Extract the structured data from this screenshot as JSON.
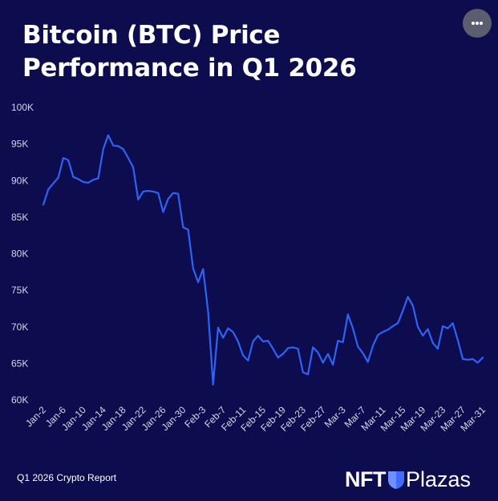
{
  "title": "Bitcoin (BTC) Price Performance in Q1 2026",
  "menu_icon": "more-horizontal-icon",
  "footer_note": "Q1 2026 Crypto Report",
  "logo": {
    "left": "NFT",
    "right": "Plazas",
    "mark_icon": "shield-icon"
  },
  "colors": {
    "background": "#0c0c4e",
    "line": "#2f63f6",
    "text": "#ffffff",
    "tick_text": "#d6d7e6"
  },
  "chart_data": {
    "type": "line",
    "title": "Bitcoin (BTC) Price Performance in Q1 2026",
    "xlabel": "",
    "ylabel": "",
    "ylim": [
      60000,
      100000
    ],
    "y_ticks": [
      "60K",
      "65K",
      "70K",
      "75K",
      "80K",
      "85K",
      "90K",
      "95K",
      "100K"
    ],
    "x_ticks": [
      "Jan-2",
      "Jan-6",
      "Jan-10",
      "Jan-14",
      "Jan-18",
      "Jan-22",
      "Jan-26",
      "Jan-30",
      "Feb-3",
      "Feb-7",
      "Feb-11",
      "Feb-15",
      "Feb-19",
      "Feb-23",
      "Feb-27",
      "Mar-3",
      "Mar-7",
      "Mar-11",
      "Mar-15",
      "Mar-19",
      "Mar-23",
      "Mar-27",
      "Mar-31"
    ],
    "grid": false,
    "legend": "none",
    "series": [
      {
        "x": [
          "2026-01-02",
          "2026-01-03",
          "2026-01-04",
          "2026-01-05",
          "2026-01-06",
          "2026-01-07",
          "2026-01-08",
          "2026-01-09",
          "2026-01-10",
          "2026-01-11",
          "2026-01-12",
          "2026-01-13",
          "2026-01-14",
          "2026-01-15",
          "2026-01-16",
          "2026-01-17",
          "2026-01-18",
          "2026-01-19",
          "2026-01-20",
          "2026-01-21",
          "2026-01-22",
          "2026-01-23",
          "2026-01-24",
          "2026-01-25",
          "2026-01-26",
          "2026-01-27",
          "2026-01-28",
          "2026-01-29",
          "2026-01-30",
          "2026-01-31",
          "2026-02-01",
          "2026-02-02",
          "2026-02-03",
          "2026-02-04",
          "2026-02-05",
          "2026-02-06",
          "2026-02-07",
          "2026-02-08",
          "2026-02-09",
          "2026-02-10",
          "2026-02-11",
          "2026-02-12",
          "2026-02-13",
          "2026-02-14",
          "2026-02-15",
          "2026-02-16",
          "2026-02-17",
          "2026-02-18",
          "2026-02-19",
          "2026-02-20",
          "2026-02-21",
          "2026-02-22",
          "2026-02-23",
          "2026-02-24",
          "2026-02-25",
          "2026-02-26",
          "2026-02-27",
          "2026-02-28",
          "2026-03-01",
          "2026-03-02",
          "2026-03-03",
          "2026-03-04",
          "2026-03-05",
          "2026-03-06",
          "2026-03-07",
          "2026-03-08",
          "2026-03-09",
          "2026-03-10",
          "2026-03-11",
          "2026-03-12",
          "2026-03-13",
          "2026-03-14",
          "2026-03-15",
          "2026-03-16",
          "2026-03-17",
          "2026-03-18",
          "2026-03-19",
          "2026-03-20",
          "2026-03-21",
          "2026-03-22",
          "2026-03-23",
          "2026-03-24",
          "2026-03-25",
          "2026-03-26",
          "2026-03-27",
          "2026-03-28",
          "2026-03-29",
          "2026-03-30",
          "2026-03-31"
        ],
        "y": [
          86700,
          88800,
          89600,
          90400,
          93100,
          92800,
          90500,
          90200,
          89800,
          89700,
          90100,
          90300,
          94300,
          96200,
          94800,
          94700,
          94300,
          93100,
          91800,
          87400,
          88500,
          88600,
          88500,
          88300,
          85700,
          87500,
          88300,
          88200,
          83600,
          83300,
          78000,
          76100,
          77900,
          72100,
          62100,
          69900,
          68500,
          69800,
          69300,
          68000,
          66100,
          65400,
          68000,
          68800,
          68000,
          68100,
          67000,
          65800,
          66300,
          67100,
          67200,
          67000,
          63800,
          63500,
          67200,
          66500,
          65100,
          66300,
          64800,
          68100,
          67900,
          71700,
          69800,
          67300,
          66400,
          65200,
          67400,
          68900,
          69300,
          69600,
          70100,
          70500,
          72200,
          74100,
          72900,
          70000,
          68800,
          69700,
          67800,
          67000,
          70100,
          69800,
          70500,
          68200,
          65600,
          65500,
          65600,
          65100,
          65800
        ]
      }
    ]
  }
}
